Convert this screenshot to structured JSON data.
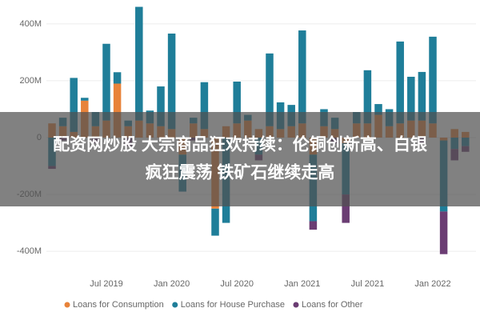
{
  "chart_data": {
    "type": "bar",
    "stacked": true,
    "categories": [
      null,
      null,
      null,
      null,
      null,
      "Jul 2019",
      null,
      null,
      null,
      null,
      null,
      "Jan 2020",
      null,
      null,
      null,
      null,
      null,
      "Jul 2020",
      null,
      null,
      null,
      null,
      null,
      "Jan 2021",
      null,
      null,
      null,
      null,
      null,
      "Jul 2021",
      null,
      null,
      null,
      null,
      null,
      "Jan 2022",
      null,
      null,
      null
    ],
    "series": [
      {
        "name": "Loans for Consumption",
        "color": "#e8833a",
        "values": [
          50,
          40,
          20,
          130,
          40,
          60,
          190,
          40,
          60,
          50,
          40,
          30,
          -60,
          50,
          30,
          -250,
          40,
          50,
          60,
          30,
          40,
          30,
          40,
          50,
          -60,
          40,
          30,
          -20,
          50,
          50,
          80,
          40,
          50,
          60,
          60,
          50,
          -10,
          30,
          20
        ]
      },
      {
        "name": "Loans for House Purchase",
        "color": "#1f7e99",
        "values": [
          -100,
          30,
          190,
          10,
          50,
          270,
          40,
          20,
          400,
          45,
          140,
          336,
          -130,
          20,
          165,
          -95,
          -300,
          147,
          20,
          -60,
          256,
          94,
          75,
          327,
          -234,
          60,
          40,
          -180,
          40,
          187,
          38,
          60,
          288,
          154,
          171,
          305,
          -250,
          -40,
          -30
        ]
      },
      {
        "name": "Loans for Other",
        "color": "#6b3d73",
        "values": [
          -10,
          -10,
          0,
          0,
          -20,
          0,
          0,
          -30,
          0,
          0,
          0,
          0,
          0,
          -10,
          0,
          0,
          0,
          0,
          0,
          -20,
          0,
          0,
          0,
          0,
          -30,
          0,
          -20,
          -100,
          0,
          0,
          0,
          0,
          0,
          0,
          -20,
          0,
          -150,
          -40,
          -20
        ]
      }
    ],
    "ylim": [
      -470,
      470
    ],
    "yticks": [
      {
        "value": 400,
        "label": "400M"
      },
      {
        "value": 200,
        "label": "200M"
      },
      0,
      {
        "value": -200,
        "label": "-200M"
      },
      {
        "value": -400,
        "label": "-400M"
      }
    ],
    "grid": true
  },
  "overlay_title": [
    "配资网炒股 大宗商品狂欢持续：伦铜创新高、白银",
    "疯狂震荡 铁矿石继续走高"
  ]
}
